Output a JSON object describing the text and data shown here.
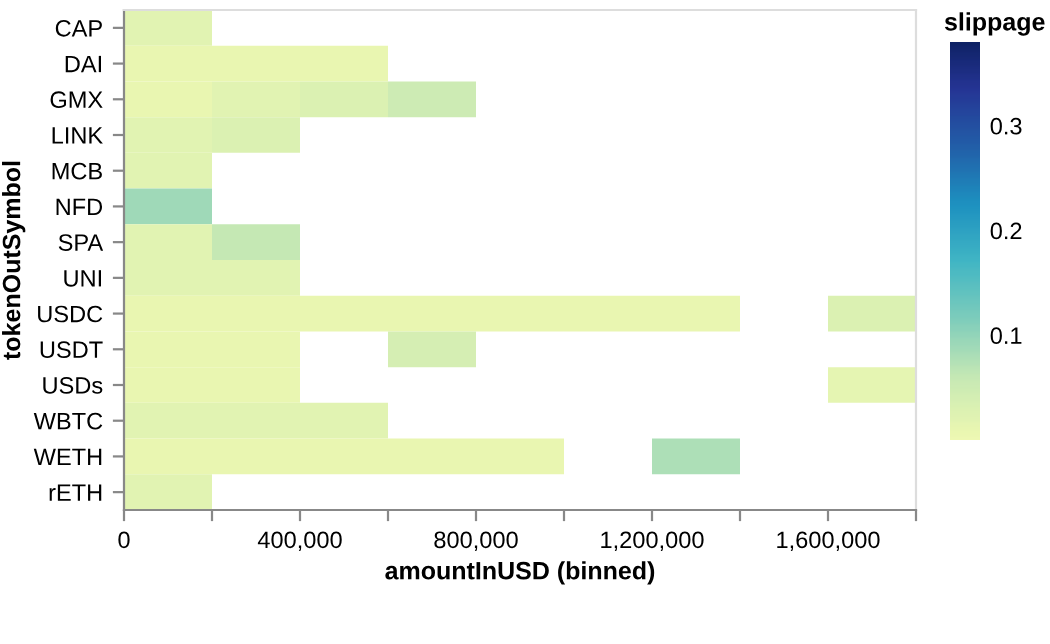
{
  "chart_data": {
    "type": "heatmap",
    "xlabel": "amountInUSD (binned)",
    "ylabel": "tokenOutSymbol",
    "clabel": "slippage",
    "x": [
      100000,
      300000,
      500000,
      700000,
      900000,
      1100000,
      1300000,
      1500000,
      1700000
    ],
    "xlim": [
      0,
      1800000
    ],
    "xticks": [
      0,
      {
        "value": 200000,
        "label": null
      },
      {
        "value": 400000,
        "label": "400,000"
      },
      {
        "value": 600000,
        "label": null
      },
      {
        "value": 800000,
        "label": "800,000"
      },
      {
        "value": 1000000,
        "label": null
      },
      {
        "value": 1200000,
        "label": "1,200,000"
      },
      {
        "value": 1400000,
        "label": null
      },
      {
        "value": 1600000,
        "label": "1,600,000"
      },
      {
        "value": 1800000,
        "label": null
      }
    ],
    "y_categories": [
      "CAP",
      "DAI",
      "GMX",
      "LINK",
      "MCB",
      "NFD",
      "SPA",
      "UNI",
      "USDC",
      "USDT",
      "USDs",
      "WBTC",
      "WETH",
      "rETH"
    ],
    "cells": [
      [
        0.02,
        null,
        null,
        null,
        null,
        null,
        null,
        null,
        null
      ],
      [
        0.01,
        0.01,
        0.01,
        null,
        null,
        null,
        null,
        null,
        null
      ],
      [
        0.01,
        0.02,
        0.03,
        0.05,
        null,
        null,
        null,
        null,
        null
      ],
      [
        0.02,
        0.03,
        null,
        null,
        null,
        null,
        null,
        null,
        null
      ],
      [
        0.02,
        null,
        null,
        null,
        null,
        null,
        null,
        null,
        null
      ],
      [
        0.09,
        null,
        null,
        null,
        null,
        null,
        null,
        null,
        null
      ],
      [
        0.02,
        0.06,
        null,
        null,
        null,
        null,
        null,
        null,
        null
      ],
      [
        0.02,
        0.02,
        null,
        null,
        null,
        null,
        null,
        null,
        null
      ],
      [
        0.01,
        0.01,
        0.01,
        0.01,
        0.01,
        0.01,
        0.01,
        null,
        0.03
      ],
      [
        0.01,
        0.01,
        null,
        0.04,
        null,
        null,
        null,
        null,
        null
      ],
      [
        0.01,
        0.01,
        null,
        null,
        null,
        null,
        null,
        null,
        0.015
      ],
      [
        0.02,
        0.02,
        0.02,
        null,
        null,
        null,
        null,
        null,
        null
      ],
      [
        0.01,
        0.01,
        0.01,
        0.01,
        0.01,
        null,
        0.08,
        null,
        null
      ],
      [
        0.02,
        null,
        null,
        null,
        null,
        null,
        null,
        null,
        null
      ]
    ],
    "clim": [
      0,
      0.38
    ],
    "cticks": [
      0.1,
      0.2,
      0.3
    ],
    "grid": false
  }
}
